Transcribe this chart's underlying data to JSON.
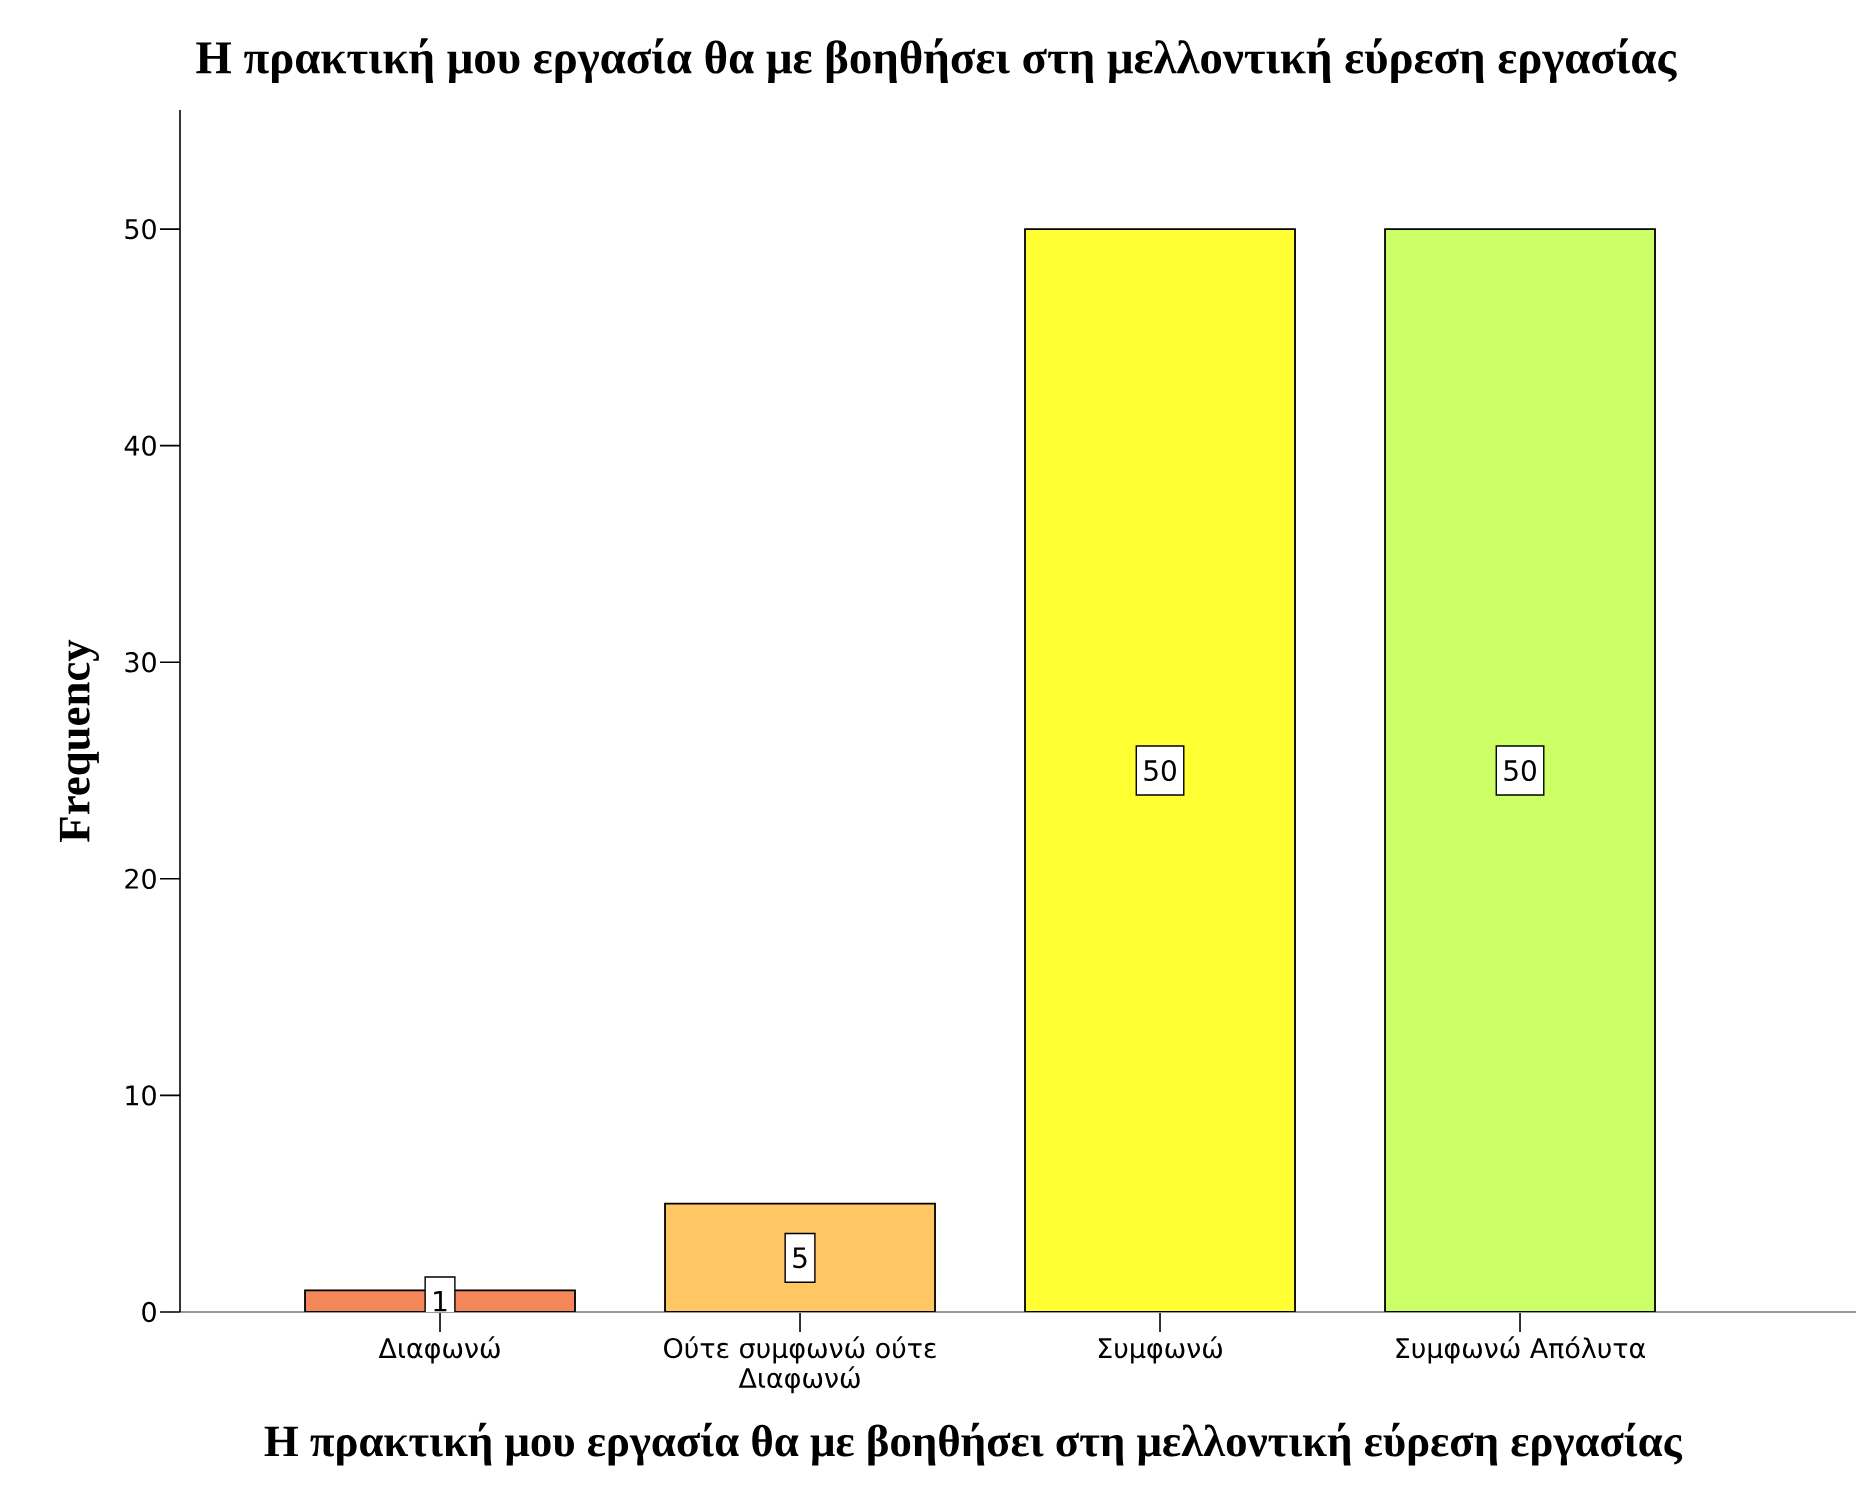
{
  "chart_data": {
    "type": "bar",
    "title": "Η πρακτική μου εργασία θα με βοηθήσει στη μελλοντική εύρεση εργασίας",
    "xlabel": "Η πρακτική μου εργασία θα με βοηθήσει στη μελλοντική εύρεση εργασίας",
    "ylabel": "Frequency",
    "categories": [
      "Διαφωνώ",
      "Ούτε συμφωνώ ούτε Διαφωνώ",
      "Συμφωνώ",
      "Συμφωνώ Απόλυτα"
    ],
    "values": [
      1,
      5,
      50,
      50
    ],
    "colors": [
      "#f4875a",
      "#ffc664",
      "#ffff33",
      "#ccff66"
    ],
    "ylim": [
      0,
      55.5
    ],
    "yticks": [
      0,
      10,
      20,
      30,
      40,
      50
    ],
    "data_labels": true
  }
}
